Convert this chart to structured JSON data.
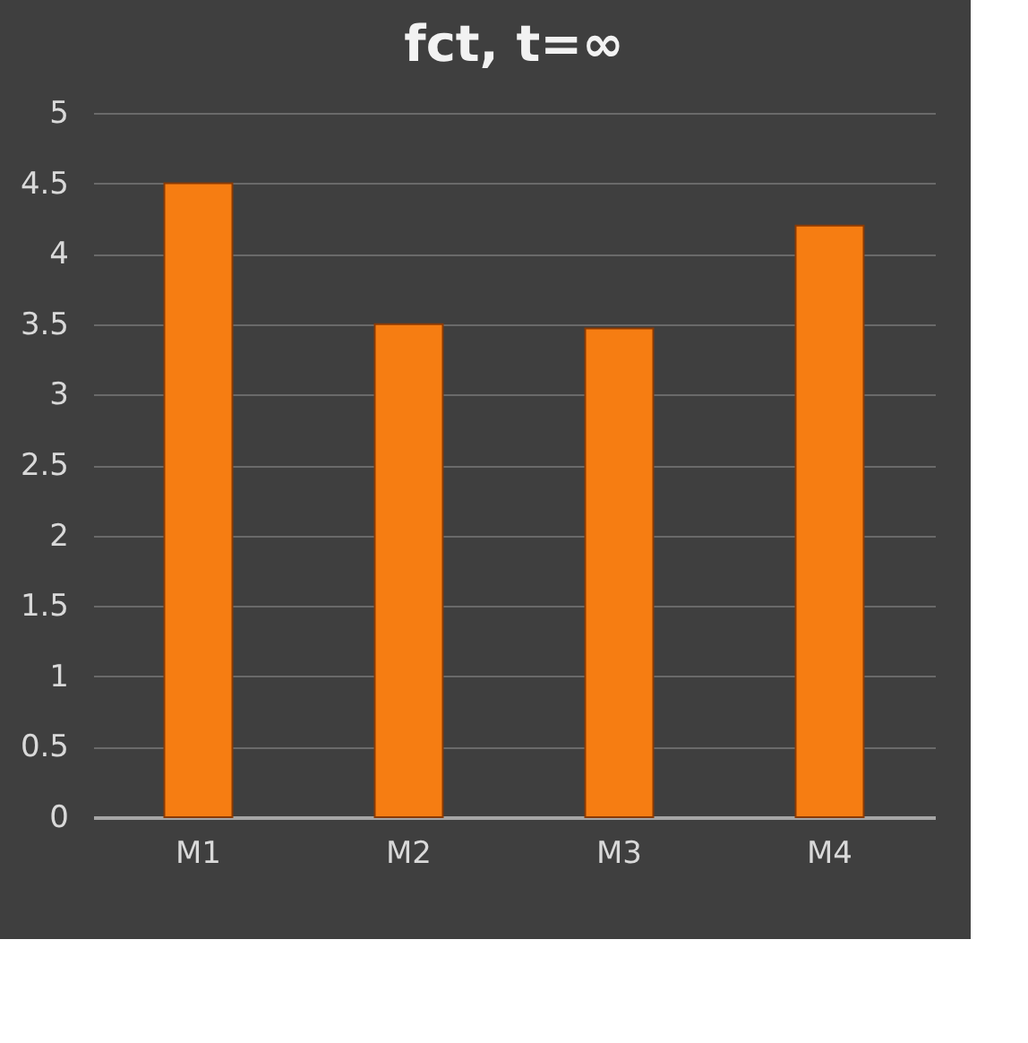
{
  "chart_data": {
    "type": "bar",
    "title": "fct,  t=∞",
    "categories": [
      "M1",
      "M2",
      "M3",
      "M4"
    ],
    "values": [
      4.5,
      3.5,
      3.47,
      4.2
    ],
    "color": "#f67d12",
    "ylim": [
      0,
      5
    ],
    "yticks": [
      0,
      0.5,
      1,
      1.5,
      2,
      2.5,
      3,
      3.5,
      4,
      4.5,
      5
    ],
    "grid": "y"
  }
}
